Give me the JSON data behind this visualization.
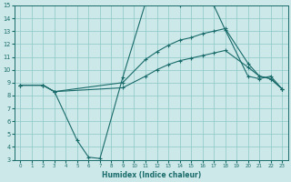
{
  "xlabel": "Humidex (Indice chaleur)",
  "xlim": [
    -0.5,
    23.5
  ],
  "ylim": [
    3,
    15
  ],
  "xticks": [
    0,
    1,
    2,
    3,
    4,
    5,
    6,
    7,
    8,
    9,
    10,
    11,
    12,
    13,
    14,
    15,
    16,
    17,
    18,
    19,
    20,
    21,
    22,
    23
  ],
  "yticks": [
    3,
    4,
    5,
    6,
    7,
    8,
    9,
    10,
    11,
    12,
    13,
    14,
    15
  ],
  "bg_color": "#cce8e8",
  "grid_color": "#8ec8c8",
  "line_color": "#1a6b6b",
  "line_top_x": [
    0,
    2,
    3,
    5,
    6,
    7,
    9,
    11,
    12,
    13,
    14,
    15,
    16,
    17,
    18,
    20,
    21,
    22,
    23
  ],
  "line_top_y": [
    8.8,
    8.8,
    8.3,
    4.5,
    3.2,
    3.1,
    9.4,
    15.2,
    15.2,
    15.2,
    15.0,
    15.2,
    15.2,
    15.0,
    13.1,
    9.5,
    9.3,
    9.5,
    8.5
  ],
  "line_mid_x": [
    0,
    2,
    3,
    9,
    11,
    12,
    13,
    14,
    15,
    16,
    17,
    18,
    20,
    21,
    22,
    23
  ],
  "line_mid_y": [
    8.8,
    8.8,
    8.3,
    9.0,
    10.8,
    11.4,
    11.9,
    12.3,
    12.5,
    12.8,
    13.0,
    13.2,
    10.5,
    9.5,
    9.3,
    8.5
  ],
  "line_bot_x": [
    0,
    2,
    3,
    9,
    11,
    12,
    13,
    14,
    15,
    16,
    17,
    18,
    20,
    21,
    22,
    23
  ],
  "line_bot_y": [
    8.8,
    8.8,
    8.3,
    8.6,
    9.5,
    10.0,
    10.4,
    10.7,
    10.9,
    11.1,
    11.3,
    11.5,
    10.2,
    9.5,
    9.3,
    8.5
  ]
}
